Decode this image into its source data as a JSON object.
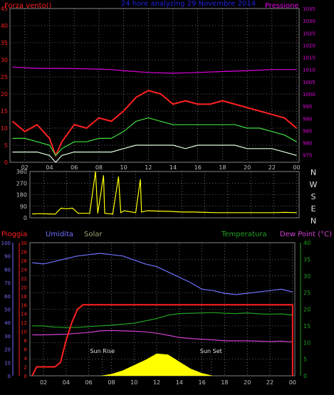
{
  "colors": {
    "bg": "#000000",
    "axis": "#808080",
    "grid": "#b0b0b0",
    "red": "#ff2020",
    "magenta": "#e000e0",
    "blue_title": "#2020e0",
    "green": "#40e040",
    "white_green": "#e0ffe0",
    "yellow": "#ffff00",
    "orange": "#ff7f00",
    "purple": "#c040c0",
    "periwinkle": "#7070ff",
    "solar_label": "#a0a070",
    "temp_green": "#20a020",
    "dew_magenta": "#d040d0"
  },
  "header": {
    "left_label": "Forza vento()",
    "center_title": "24 hore analyzing 29 Novembre 2014",
    "right_label": "Pressione"
  },
  "chart_data": [
    {
      "id": "wind",
      "type": "line",
      "x_ticks": [
        "02",
        "04",
        "06",
        "08",
        "10",
        "12",
        "14",
        "16",
        "18",
        "20",
        "22",
        "00"
      ],
      "y_left_ticks": [
        "0",
        "5",
        "10",
        "15",
        "20",
        "25",
        "30",
        "35",
        "40",
        "45"
      ],
      "y_right_ticks": [
        "975",
        "980",
        "985",
        "990",
        "995",
        "1000",
        "1005",
        "1010",
        "1015",
        "1020",
        "1025",
        "1030",
        "1035"
      ],
      "ylim_left": [
        0,
        45
      ],
      "ylim_right": [
        972,
        1035
      ],
      "x_range_hours": [
        0.8,
        24.2
      ],
      "series": [
        {
          "color": "red",
          "values": [
            [
              1,
              12
            ],
            [
              2,
              9
            ],
            [
              3,
              11
            ],
            [
              4,
              7
            ],
            [
              4.5,
              2
            ],
            [
              5,
              6
            ],
            [
              6,
              11
            ],
            [
              7,
              10
            ],
            [
              8,
              13
            ],
            [
              9,
              12
            ],
            [
              10,
              15
            ],
            [
              11,
              19
            ],
            [
              12,
              21
            ],
            [
              13,
              20
            ],
            [
              14,
              17
            ],
            [
              15,
              18
            ],
            [
              16,
              17
            ],
            [
              17,
              17
            ],
            [
              18,
              18
            ],
            [
              19,
              17
            ],
            [
              20,
              16
            ],
            [
              21,
              15
            ],
            [
              22,
              14
            ],
            [
              23,
              13
            ],
            [
              24,
              10
            ]
          ]
        },
        {
          "color": "green",
          "values": [
            [
              1,
              7
            ],
            [
              2,
              7
            ],
            [
              3,
              6
            ],
            [
              4,
              5
            ],
            [
              4.5,
              2
            ],
            [
              5,
              4
            ],
            [
              6,
              6
            ],
            [
              7,
              6
            ],
            [
              8,
              7
            ],
            [
              9,
              7
            ],
            [
              10,
              9
            ],
            [
              11,
              12
            ],
            [
              12,
              13
            ],
            [
              13,
              12
            ],
            [
              14,
              11
            ],
            [
              15,
              11
            ],
            [
              16,
              11
            ],
            [
              17,
              11
            ],
            [
              18,
              11
            ],
            [
              19,
              11
            ],
            [
              20,
              10
            ],
            [
              21,
              10
            ],
            [
              22,
              9
            ],
            [
              23,
              8
            ],
            [
              24,
              6
            ]
          ]
        },
        {
          "color": "white_green",
          "values": [
            [
              1,
              3
            ],
            [
              2,
              3
            ],
            [
              3,
              3
            ],
            [
              4,
              2
            ],
            [
              4.5,
              0
            ],
            [
              5,
              2
            ],
            [
              6,
              3
            ],
            [
              7,
              3
            ],
            [
              8,
              3
            ],
            [
              9,
              3
            ],
            [
              10,
              4
            ],
            [
              11,
              5
            ],
            [
              12,
              5
            ],
            [
              13,
              5
            ],
            [
              14,
              5
            ],
            [
              15,
              4
            ],
            [
              16,
              5
            ],
            [
              17,
              5
            ],
            [
              18,
              5
            ],
            [
              19,
              5
            ],
            [
              20,
              4
            ],
            [
              21,
              4
            ],
            [
              22,
              4
            ],
            [
              23,
              3
            ],
            [
              24,
              2
            ]
          ]
        },
        {
          "color": "magenta",
          "axis": "right",
          "values": [
            [
              1,
              1011
            ],
            [
              3,
              1010.5
            ],
            [
              5,
              1010.5
            ],
            [
              7,
              1010.3
            ],
            [
              9,
              1010
            ],
            [
              10,
              1009.5
            ],
            [
              12,
              1008.8
            ],
            [
              14,
              1008.5
            ],
            [
              16,
              1008.8
            ],
            [
              18,
              1009.2
            ],
            [
              20,
              1009.5
            ],
            [
              22,
              1010
            ],
            [
              24,
              1010
            ]
          ]
        }
      ]
    },
    {
      "id": "direction",
      "type": "line",
      "y_left_ticks": [
        "0",
        "90",
        "180",
        "270",
        "360"
      ],
      "ylim": [
        0,
        360
      ],
      "direction_letters": [
        "N",
        "W",
        "S",
        "E",
        "N"
      ],
      "x_ticks": [
        "02",
        "04",
        "06",
        "08",
        "10",
        "12",
        "14",
        "16",
        "18",
        "20",
        "22",
        "00"
      ],
      "series": [
        {
          "color": "yellow",
          "values": [
            [
              1,
              30
            ],
            [
              1.7,
              32
            ],
            [
              2.5,
              30
            ],
            [
              3,
              28
            ],
            [
              3.5,
              75
            ],
            [
              4,
              70
            ],
            [
              4.5,
              75
            ],
            [
              5,
              35
            ],
            [
              6,
              35
            ],
            [
              6.5,
              360
            ],
            [
              6.7,
              35
            ],
            [
              7.2,
              330
            ],
            [
              7.3,
              35
            ],
            [
              8,
              28
            ],
            [
              8.5,
              320
            ],
            [
              8.7,
              40
            ],
            [
              9,
              55
            ],
            [
              10,
              40
            ],
            [
              10.4,
              300
            ],
            [
              10.5,
              45
            ],
            [
              11,
              55
            ],
            [
              12,
              52
            ],
            [
              13,
              50
            ],
            [
              14,
              45
            ],
            [
              15,
              45
            ],
            [
              16,
              42
            ],
            [
              17,
              40
            ],
            [
              18,
              40
            ],
            [
              19,
              40
            ],
            [
              20,
              40
            ],
            [
              21,
              40
            ],
            [
              22,
              40
            ],
            [
              23,
              42
            ],
            [
              24,
              40
            ]
          ]
        }
      ]
    },
    {
      "id": "weather",
      "type": "line",
      "labels": {
        "pioggia": "Pioggia",
        "umidita": "Umidita",
        "solar": "Solar",
        "temperatura": "Temperatura",
        "dew_point": "Dew Point (°C)"
      },
      "annotations": {
        "sun_rise": "Sun Rise",
        "sun_set": "Sun Set"
      },
      "sun_rise_hour": 7.2,
      "sun_set_hour": 16.8,
      "ticks_rain_blue": [
        "0",
        "10",
        "20",
        "30",
        "40",
        "50",
        "60",
        "70",
        "80",
        "90",
        "100"
      ],
      "ticks_rain_red": [
        "0",
        "2",
        "4",
        "6",
        "8",
        "10",
        "12",
        "14",
        "16",
        "18",
        "20",
        "22",
        "24",
        "26",
        "28",
        "30"
      ],
      "ticks_temp": [
        "0",
        "5",
        "10",
        "15",
        "20",
        "25",
        "30",
        "35",
        "40"
      ],
      "x_ticks": [
        "02",
        "04",
        "06",
        "08",
        "10",
        "12",
        "14",
        "16",
        "18",
        "20",
        "22",
        "00"
      ],
      "x_range_hours": [
        0.8,
        24.2
      ],
      "ylim_humidity": [
        0,
        100
      ],
      "ylim_temp": [
        0,
        40
      ],
      "ylim_rain": [
        0,
        30
      ],
      "series": [
        {
          "color": "periwinkle",
          "values": [
            [
              1,
              85
            ],
            [
              2,
              84
            ],
            [
              3,
              86
            ],
            [
              4,
              88
            ],
            [
              5,
              90
            ],
            [
              6,
              91
            ],
            [
              7,
              92
            ],
            [
              8,
              91
            ],
            [
              9,
              90
            ],
            [
              10,
              87
            ],
            [
              11,
              84
            ],
            [
              12,
              82
            ],
            [
              13,
              78
            ],
            [
              14,
              74
            ],
            [
              15,
              70
            ],
            [
              16,
              65
            ],
            [
              17,
              64
            ],
            [
              18,
              62
            ],
            [
              19,
              61
            ],
            [
              20,
              62
            ],
            [
              21,
              63
            ],
            [
              22,
              64
            ],
            [
              23,
              65
            ],
            [
              24,
              63
            ]
          ]
        },
        {
          "color": "temp_green",
          "values": [
            [
              1,
              15
            ],
            [
              2,
              15
            ],
            [
              3,
              14.6
            ],
            [
              4,
              14.5
            ],
            [
              5,
              14.5
            ],
            [
              6,
              14.8
            ],
            [
              7,
              15
            ],
            [
              8,
              15.2
            ],
            [
              9,
              15.5
            ],
            [
              10,
              15.8
            ],
            [
              11,
              16.5
            ],
            [
              12,
              17.2
            ],
            [
              13,
              18.2
            ],
            [
              14,
              18.7
            ],
            [
              15,
              18.8
            ],
            [
              16,
              18.9
            ],
            [
              17,
              19
            ],
            [
              18,
              18.8
            ],
            [
              19,
              18.7
            ],
            [
              20,
              18.9
            ],
            [
              21,
              18.6
            ],
            [
              22,
              18.5
            ],
            [
              23,
              18.6
            ],
            [
              24,
              18.2
            ]
          ]
        },
        {
          "color": "dew_magenta",
          "values": [
            [
              1,
              12.3
            ],
            [
              2,
              12.3
            ],
            [
              3,
              12.4
            ],
            [
              4,
              12.5
            ],
            [
              5,
              12.8
            ],
            [
              6,
              13.0
            ],
            [
              7,
              13.5
            ],
            [
              8,
              13.6
            ],
            [
              9,
              13.5
            ],
            [
              10,
              13.4
            ],
            [
              11,
              13.2
            ],
            [
              12,
              12.8
            ],
            [
              13,
              12.2
            ],
            [
              14,
              11.5
            ],
            [
              15,
              11.2
            ],
            [
              16,
              11
            ],
            [
              17,
              10.8
            ],
            [
              18,
              10.5
            ],
            [
              19,
              10.5
            ],
            [
              20,
              10.5
            ],
            [
              21,
              10.4
            ],
            [
              22,
              10.3
            ],
            [
              23,
              10.4
            ],
            [
              24,
              10.2
            ]
          ]
        },
        {
          "color": "red",
          "axis": "rain",
          "values": [
            [
              1,
              0
            ],
            [
              1.4,
              2
            ],
            [
              2,
              2
            ],
            [
              3,
              2
            ],
            [
              3.5,
              3
            ],
            [
              4,
              8
            ],
            [
              4.5,
              12
            ],
            [
              5,
              15
            ],
            [
              5.5,
              16
            ],
            [
              6,
              16
            ],
            [
              24,
              16
            ],
            [
              24,
              0
            ]
          ]
        },
        {
          "color": "yellow",
          "type": "area",
          "values": [
            [
              7,
              0
            ],
            [
              8,
              0.2
            ],
            [
              9,
              0.6
            ],
            [
              10,
              1.2
            ],
            [
              11,
              1.8
            ],
            [
              12,
              2.5
            ],
            [
              13,
              2.4
            ],
            [
              14,
              1.6
            ],
            [
              15,
              0.8
            ],
            [
              16,
              0.3
            ],
            [
              17,
              0
            ]
          ]
        }
      ]
    }
  ]
}
